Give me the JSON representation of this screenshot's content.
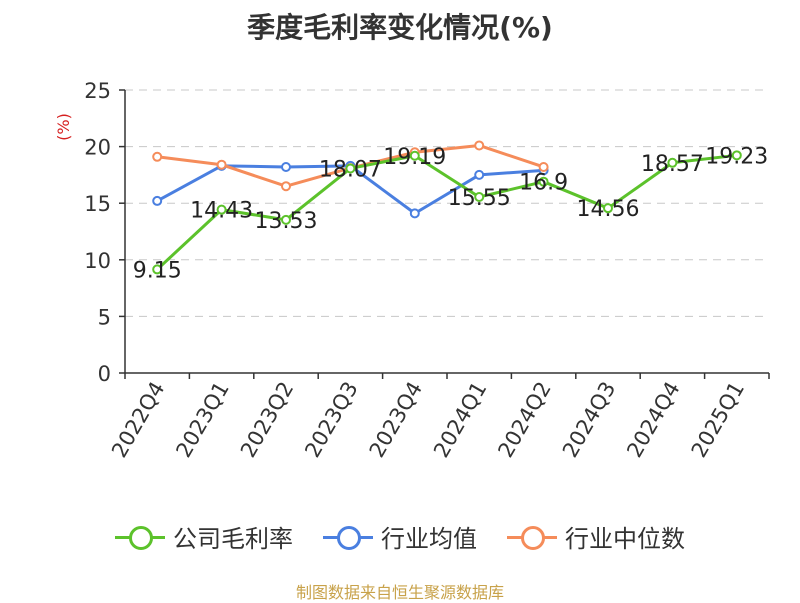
{
  "chart_data": {
    "type": "line",
    "title": "季度毛利率变化情况(%)",
    "ylabel": "(%)",
    "xlabel": "",
    "categories": [
      "2022Q4",
      "2023Q1",
      "2023Q2",
      "2023Q3",
      "2023Q4",
      "2024Q1",
      "2024Q2",
      "2024Q3",
      "2024Q4",
      "2025Q1"
    ],
    "ylim": [
      0,
      25
    ],
    "yticks": [
      "0",
      "5",
      "10",
      "15",
      "20",
      "25"
    ],
    "grid": "horizontal dashed",
    "legend_position": "bottom",
    "series": [
      {
        "name": "公司毛利率",
        "color": "#5cc22b",
        "labeled": true,
        "values": [
          9.15,
          14.43,
          13.53,
          18.07,
          19.19,
          15.55,
          16.9,
          14.56,
          18.57,
          19.23
        ],
        "labels": [
          "9.15",
          "14.43",
          "13.53",
          "18.07",
          "19.19",
          "15.55",
          "16.9",
          "14.56",
          "18.57",
          "19.23"
        ]
      },
      {
        "name": "行业均值",
        "color": "#4a7fe0",
        "labeled": false,
        "values": [
          15.2,
          18.3,
          18.2,
          18.3,
          14.1,
          17.5,
          17.9,
          null,
          null,
          null
        ]
      },
      {
        "name": "行业中位数",
        "color": "#f58c5a",
        "labeled": false,
        "values": [
          19.1,
          18.4,
          16.5,
          18.1,
          19.5,
          20.1,
          18.2,
          null,
          null,
          null
        ]
      }
    ],
    "source": "制图数据来自恒生聚源数据库"
  }
}
